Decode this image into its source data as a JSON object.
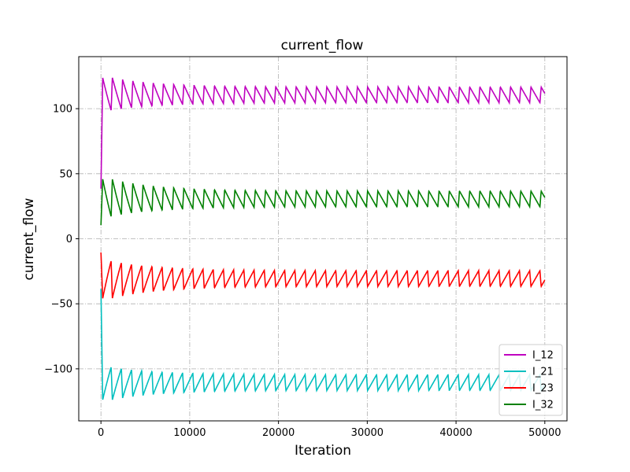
{
  "chart_data": {
    "type": "line",
    "title": "current_flow",
    "xlabel": "Iteration",
    "ylabel": "current_flow",
    "xlim": [
      -2500,
      52500
    ],
    "ylim": [
      -140,
      140
    ],
    "xticks": [
      0,
      10000,
      20000,
      30000,
      40000,
      50000
    ],
    "xtick_labels": [
      "0",
      "10000",
      "20000",
      "30000",
      "40000",
      "50000"
    ],
    "yticks": [
      -100,
      -50,
      0,
      50,
      100
    ],
    "ytick_labels": [
      "−100",
      "−50",
      "0",
      "50",
      "100"
    ],
    "grid": true,
    "legend_position": "lower-right",
    "x_end": 50000,
    "series": [
      {
        "name": "I_12",
        "color": "#bf00bf",
        "level": 110,
        "amplitude_start": 26,
        "amplitude_end": 11,
        "period": 1150
      },
      {
        "name": "I_21",
        "color": "#00bfbf",
        "level": -110,
        "amplitude_start": 26,
        "amplitude_end": 11,
        "period": 1150
      },
      {
        "name": "I_23",
        "color": "#ff0000",
        "level": -30,
        "amplitude_start": 30,
        "amplitude_end": 11,
        "period": 1150
      },
      {
        "name": "I_32",
        "color": "#008000",
        "level": 30,
        "amplitude_start": 30,
        "amplitude_end": 11,
        "period": 1150
      }
    ]
  }
}
